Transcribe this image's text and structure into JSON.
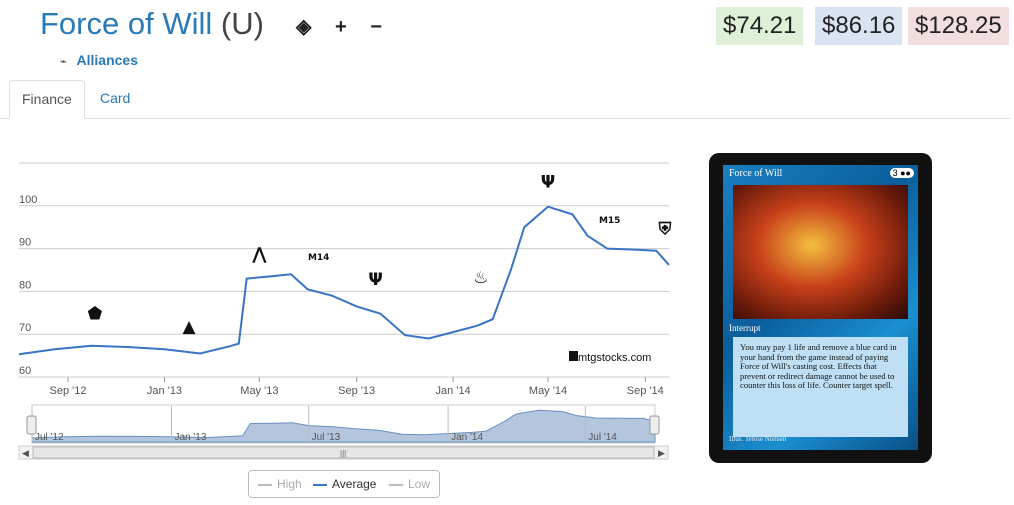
{
  "card": {
    "name": "Force of Will",
    "rarity": "(U)",
    "set": "Alliances",
    "icons": [
      "eye-icon",
      "plus-icon",
      "minus-icon"
    ],
    "icon_glyphs": {
      "eye": "◈",
      "plus": "+",
      "minus": "−"
    }
  },
  "prices": {
    "low": "$74.21",
    "average": "$86.16",
    "high": "$128.25",
    "low_color": "#dff0d8",
    "average_color": "#d9e3f2",
    "high_color": "#f2dede"
  },
  "tabs": [
    {
      "label": "Finance",
      "active": true
    },
    {
      "label": "Card",
      "active": false
    }
  ],
  "card_image": {
    "name": "Force of Will",
    "cost": "3 ●●",
    "type": "Interrupt",
    "text": "You may pay 1 life and remove a blue card in your hand from the game instead of paying Force of Will's casting cost. Effects that prevent or redirect damage cannot be used to counter this loss of life. Counter target spell.",
    "illustrator": "Illus. Terese Nielsen"
  },
  "watermark": "mtgstocks.com",
  "chart_data": {
    "type": "line",
    "series": [
      {
        "name": "Average",
        "color": "#3a74c4",
        "x": [
          "2012-07-01",
          "2012-08-15",
          "2012-10-01",
          "2012-11-15",
          "2013-01-01",
          "2013-02-15",
          "2013-03-25",
          "2013-04-05",
          "2013-04-15",
          "2013-05-15",
          "2013-06-10",
          "2013-07-01",
          "2013-08-01",
          "2013-09-01",
          "2013-10-01",
          "2013-11-01",
          "2013-12-01",
          "2014-01-01",
          "2014-02-01",
          "2014-02-20",
          "2014-03-15",
          "2014-04-01",
          "2014-05-01",
          "2014-06-01",
          "2014-06-20",
          "2014-07-15",
          "2014-08-15",
          "2014-09-15",
          "2014-10-01"
        ],
        "y": [
          65.3,
          66.5,
          67.3,
          67.0,
          66.5,
          65.5,
          67.2,
          67.8,
          83.0,
          83.5,
          84.0,
          80.5,
          79.0,
          76.5,
          74.8,
          69.8,
          69.0,
          70.5,
          72.0,
          73.5,
          85.0,
          95.0,
          99.8,
          98.0,
          93.0,
          90.0,
          89.8,
          89.5,
          86.2
        ]
      },
      {
        "name": "High",
        "visible": false
      },
      {
        "name": "Low",
        "visible": false
      }
    ],
    "yticks": [
      60,
      70,
      80,
      90,
      100
    ],
    "ylim": [
      60,
      110
    ],
    "xlim": [
      "2012-07-01",
      "2014-10-01"
    ],
    "xticks": [
      "Sep '12",
      "Jan '13",
      "May '13",
      "Sep '13",
      "Jan '14",
      "May '14",
      "Sep '14"
    ],
    "xtick_dates": [
      "2012-09-01",
      "2013-01-01",
      "2013-05-01",
      "2013-09-01",
      "2014-01-01",
      "2014-05-01",
      "2014-09-01"
    ],
    "navigator_ticks": [
      "Jul '12",
      "Jan '13",
      "Jul '13",
      "Jan '14",
      "Jul '14"
    ],
    "navigator_tick_dates": [
      "2012-07-01",
      "2013-01-01",
      "2013-07-01",
      "2014-01-01",
      "2014-07-01"
    ],
    "set_release_markers": [
      {
        "name": "set-release-icon",
        "date": "2012-10-05",
        "y": 73.5,
        "glyph": "⬟"
      },
      {
        "name": "set-release-icon",
        "date": "2013-02-01",
        "y": 70.5,
        "glyph": "▲"
      },
      {
        "name": "set-release-icon",
        "date": "2013-05-01",
        "y": 87.5,
        "glyph": "⋀"
      },
      {
        "name": "set-release-icon",
        "date": "2013-07-15",
        "y": 87.3,
        "glyph": "M14"
      },
      {
        "name": "set-release-icon",
        "date": "2013-09-25",
        "y": 81.5,
        "glyph": "Ψ"
      },
      {
        "name": "set-release-icon",
        "date": "2014-02-05",
        "y": 82.0,
        "glyph": "♨"
      },
      {
        "name": "set-release-icon",
        "date": "2014-05-01",
        "y": 104.3,
        "glyph": "Ψ"
      },
      {
        "name": "set-release-icon",
        "date": "2014-07-18",
        "y": 96.0,
        "glyph": "M15"
      },
      {
        "name": "set-release-icon",
        "date": "2014-09-26",
        "y": 93.3,
        "glyph": "⛨"
      }
    ],
    "legend": [
      "High",
      "Average",
      "Low"
    ],
    "legend_placement": "bottom-center",
    "grid": true
  }
}
